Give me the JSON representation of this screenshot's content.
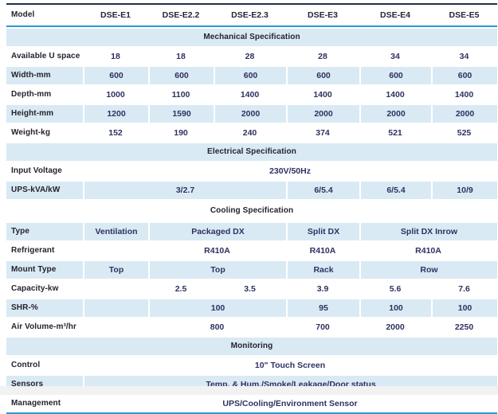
{
  "table": {
    "header": {
      "label": "Model",
      "models": [
        "DSE-E1",
        "DSE-E2.2",
        "DSE-E2.3",
        "DSE-E3",
        "DSE-E4",
        "DSE-E5"
      ]
    },
    "mechanical": {
      "title": "Mechanical Specification",
      "u_space": {
        "label": "Available U space",
        "values": [
          "18",
          "18",
          "28",
          "28",
          "34",
          "34"
        ]
      },
      "width": {
        "label": "Width-mm",
        "values": [
          "600",
          "600",
          "600",
          "600",
          "600",
          "600"
        ]
      },
      "depth": {
        "label": "Depth-mm",
        "values": [
          "1000",
          "1100",
          "1400",
          "1400",
          "1400",
          "1400"
        ]
      },
      "height": {
        "label": "Height-mm",
        "values": [
          "1200",
          "1590",
          "2000",
          "2000",
          "2000",
          "2000"
        ]
      },
      "weight": {
        "label": "Weight-kg",
        "values": [
          "152",
          "190",
          "240",
          "374",
          "521",
          "525"
        ]
      }
    },
    "electrical": {
      "title": "Electrical Specification",
      "input_voltage": {
        "label": "Input Voltage",
        "value": "230V/50Hz"
      },
      "ups": {
        "label": "UPS-kVA/kW",
        "values": [
          "3/2.7",
          "6/5.4",
          "6/5.4",
          "10/9"
        ]
      }
    },
    "cooling": {
      "title": "Cooling Specification",
      "type": {
        "label": "Type",
        "values": [
          "Ventilation",
          "Packaged DX",
          "Split DX",
          "Split DX Inrow"
        ]
      },
      "refrigerant": {
        "label": "Refrigerant",
        "values": [
          "R410A",
          "R410A",
          "R410A"
        ]
      },
      "mount": {
        "label": "Mount Type",
        "values": [
          "Top",
          "Top",
          "Rack",
          "Row"
        ]
      },
      "capacity": {
        "label": "Capacity-kw",
        "values": [
          "2.5",
          "3.5",
          "3.9",
          "5.6",
          "7.6"
        ]
      },
      "shr": {
        "label": "SHR-%",
        "values": [
          "100",
          "95",
          "100",
          "100"
        ]
      },
      "air_volume": {
        "label": "Air Volume-m³/hr",
        "values": [
          "800",
          "700",
          "2000",
          "2250"
        ]
      }
    },
    "monitoring": {
      "title": "Monitoring",
      "control": {
        "label": "Control",
        "value": "10\" Touch Screen"
      },
      "sensors": {
        "label": "Sensors",
        "value": "Temp. & Hum./Smoke/Leakage/Door status"
      },
      "management": {
        "label": "Management",
        "value": "UPS/Cooling/Environment Sensor"
      }
    }
  },
  "colors": {
    "shaded_row_bg": "#d9eaf4",
    "top_rule": "#22304a",
    "blue_rule": "#2a9ad2",
    "label_text": "#25222e",
    "value_text": "#2f3160"
  }
}
